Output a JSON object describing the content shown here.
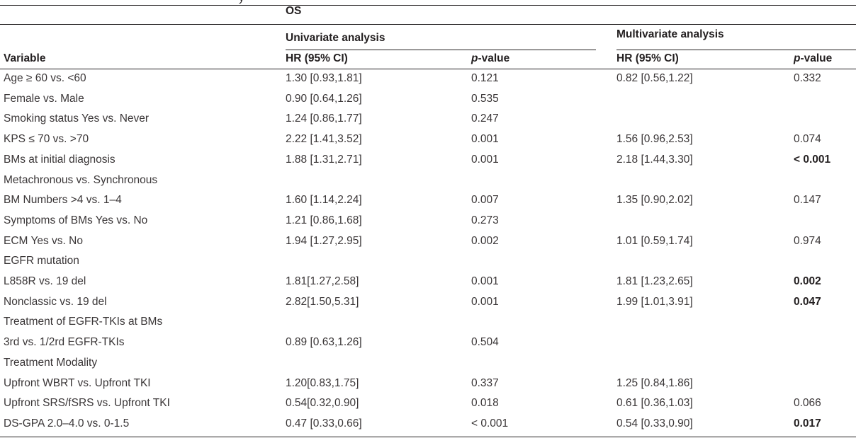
{
  "caption_fragment": "y",
  "header": {
    "os": "OS",
    "univariate": "Univariate analysis",
    "multivariate": "Multivariate analysis",
    "variable": "Variable",
    "hr": "HR (95% CI)",
    "p_italic": "p",
    "p_rest": "-value"
  },
  "rows": [
    {
      "variable": "Age ≥ 60 vs. <60",
      "uni_hr": "1.30 [0.93,1.81]",
      "uni_p": "0.121",
      "multi_hr": "0.82 [0.56,1.22]",
      "multi_p": "0.332",
      "bold_p": false
    },
    {
      "variable": "Female vs. Male",
      "uni_hr": "0.90 [0.64,1.26]",
      "uni_p": "0.535",
      "multi_hr": "",
      "multi_p": "",
      "bold_p": false
    },
    {
      "variable": "Smoking status Yes vs. Never",
      "uni_hr": "1.24 [0.86,1.77]",
      "uni_p": "0.247",
      "multi_hr": "",
      "multi_p": "",
      "bold_p": false
    },
    {
      "variable": "KPS ≤ 70 vs. ˃70",
      "uni_hr": "2.22 [1.41,3.52]",
      "uni_p": "0.001",
      "multi_hr": "1.56 [0.96,2.53]",
      "multi_p": "0.074",
      "bold_p": false
    },
    {
      "variable": "BMs at initial diagnosis",
      "uni_hr": "1.88 [1.31,2.71]",
      "uni_p": "0.001",
      "multi_hr": "2.18 [1.44,3.30]",
      "multi_p": "< 0.001",
      "bold_p": true
    },
    {
      "variable": "Metachronous vs. Synchronous",
      "uni_hr": "",
      "uni_p": "",
      "multi_hr": "",
      "multi_p": "",
      "bold_p": false
    },
    {
      "variable": "BM Numbers ˃4 vs. 1–4",
      "uni_hr": "1.60 [1.14,2.24]",
      "uni_p": "0.007",
      "multi_hr": "1.35 [0.90,2.02]",
      "multi_p": "0.147",
      "bold_p": false
    },
    {
      "variable": "Symptoms of BMs Yes vs. No",
      "uni_hr": "1.21 [0.86,1.68]",
      "uni_p": "0.273",
      "multi_hr": "",
      "multi_p": "",
      "bold_p": false
    },
    {
      "variable": "ECM Yes vs. No",
      "uni_hr": "1.94 [1.27,2.95]",
      "uni_p": "0.002",
      "multi_hr": "1.01 [0.59,1.74]",
      "multi_p": "0.974",
      "bold_p": false
    },
    {
      "variable": "EGFR mutation",
      "uni_hr": "",
      "uni_p": "",
      "multi_hr": "",
      "multi_p": "",
      "bold_p": false
    },
    {
      "variable": "L858R vs. 19 del",
      "uni_hr": "1.81[1.27,2.58]",
      "uni_p": "0.001",
      "multi_hr": "1.81 [1.23,2.65]",
      "multi_p": "0.002",
      "bold_p": true
    },
    {
      "variable": "Nonclassic vs. 19 del",
      "uni_hr": "2.82[1.50,5.31]",
      "uni_p": "0.001",
      "multi_hr": "1.99 [1.01,3.91]",
      "multi_p": "0.047",
      "bold_p": true
    },
    {
      "variable": "Treatment of EGFR-TKIs at BMs",
      "uni_hr": "",
      "uni_p": "",
      "multi_hr": "",
      "multi_p": "",
      "bold_p": false
    },
    {
      "variable": "3rd vs. 1/2rd EGFR-TKIs",
      "uni_hr": "0.89 [0.63,1.26]",
      "uni_p": "0.504",
      "multi_hr": "",
      "multi_p": "",
      "bold_p": false
    },
    {
      "variable": "Treatment Modality",
      "uni_hr": "",
      "uni_p": "",
      "multi_hr": "",
      "multi_p": "",
      "bold_p": false
    },
    {
      "variable": "Upfront WBRT vs. Upfront TKI",
      "uni_hr": "1.20[0.83,1.75]",
      "uni_p": "0.337",
      "multi_hr": "1.25 [0.84,1.86]",
      "multi_p": "",
      "bold_p": false
    },
    {
      "variable": "Upfront SRS/fSRS vs. Upfront TKI",
      "uni_hr": "0.54[0.32,0.90]",
      "uni_p": "0.018",
      "multi_hr": "0.61 [0.36,1.03]",
      "multi_p": "0.066",
      "bold_p": false
    },
    {
      "variable": "DS-GPA 2.0–4.0 vs. 0-1.5",
      "uni_hr": "0.47 [0.33,0.66]",
      "uni_p": "< 0.001",
      "multi_hr": "0.54 [0.33,0.90]",
      "multi_p": "0.017",
      "bold_p": true
    }
  ]
}
